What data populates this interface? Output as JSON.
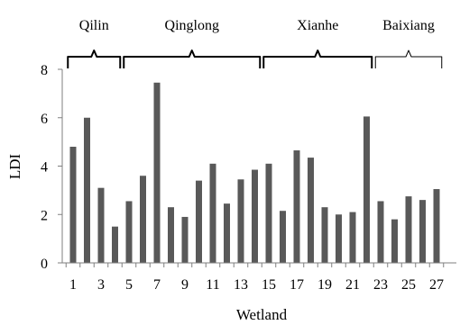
{
  "chart_data": {
    "type": "bar",
    "xlabel": "Wetland",
    "ylabel": "LDI",
    "ylim": [
      0,
      8
    ],
    "yticks": [
      0,
      2,
      4,
      6,
      8
    ],
    "xtick_labels": [
      "1",
      "3",
      "5",
      "7",
      "9",
      "11",
      "13",
      "15",
      "17",
      "19",
      "21",
      "23",
      "25",
      "27"
    ],
    "categories": [
      1,
      2,
      3,
      4,
      5,
      6,
      7,
      8,
      9,
      10,
      11,
      12,
      13,
      14,
      15,
      16,
      17,
      18,
      19,
      20,
      21,
      22,
      23,
      24,
      25,
      26,
      27
    ],
    "values": [
      4.8,
      6.0,
      3.1,
      1.5,
      2.55,
      3.6,
      7.45,
      2.3,
      1.9,
      3.4,
      4.1,
      2.45,
      3.45,
      3.85,
      4.1,
      2.15,
      4.65,
      4.35,
      2.3,
      2.0,
      2.1,
      6.05,
      2.55,
      1.8,
      2.75,
      2.6,
      3.05
    ],
    "bar_color": "#595959",
    "grid": false,
    "groups": [
      {
        "name": "Qilin",
        "from": 1,
        "to": 4
      },
      {
        "name": "Qinglong",
        "from": 5,
        "to": 14
      },
      {
        "name": "Xianhe",
        "from": 15,
        "to": 22
      },
      {
        "name": "Baixiang",
        "from": 23,
        "to": 27
      }
    ]
  }
}
